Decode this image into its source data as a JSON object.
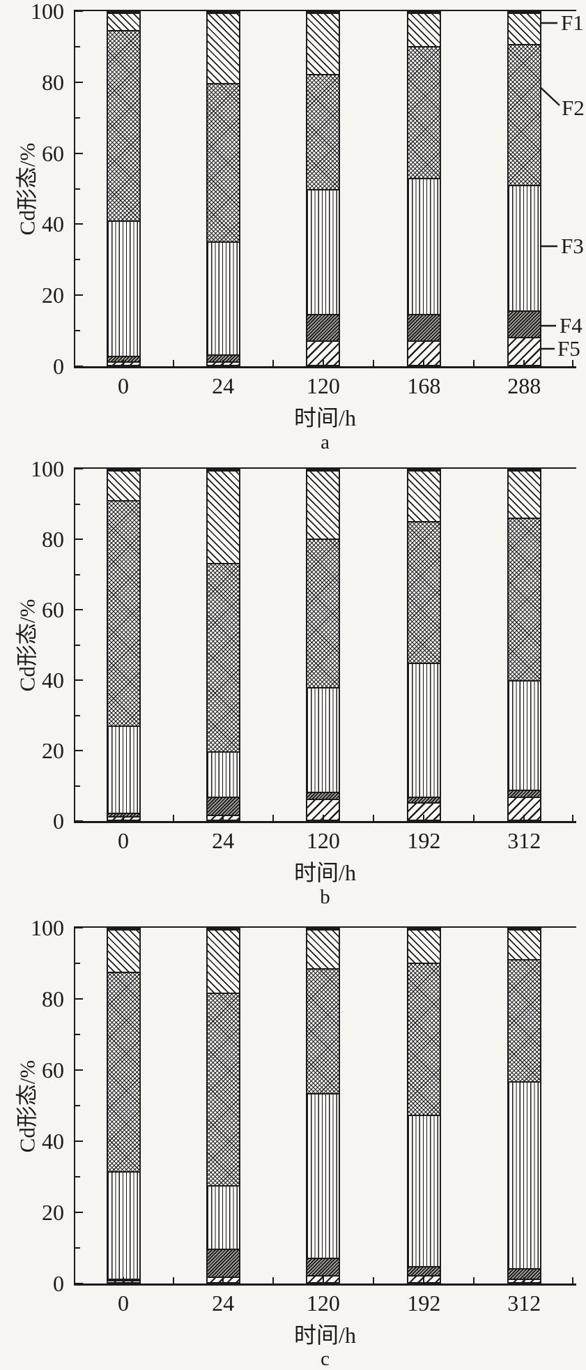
{
  "figure": {
    "kind": "scanned scientific figure, three vertically stacked 100% stacked bar charts",
    "background": "#f7f5f1",
    "ink_color": "#1b1b1b"
  },
  "legend": {
    "position": "right of panel a, labels with leader lines",
    "labels": [
      "F1",
      "F2",
      "F3",
      "F4",
      "F5"
    ],
    "patterns": {
      "F1": "sparse diagonal lines (top-left to bottom-right)",
      "F2": "diamond cross-hatch mesh",
      "F3": "vertical lines",
      "F4": "dense dark diagonal lines",
      "F5": "sparse diagonal lines (bottom-left to top-right)"
    }
  },
  "chart_data": [
    {
      "type": "bar",
      "stacked": true,
      "panel_label": "a",
      "xlabel": "时间/h",
      "ylabel": "Cd形态/%",
      "ylim": [
        0,
        100
      ],
      "y_ticks": [
        0,
        20,
        40,
        60,
        80,
        100
      ],
      "grid": false,
      "categories": [
        "0",
        "24",
        "120",
        "168",
        "288"
      ],
      "stack_order": [
        "F5",
        "F4",
        "F3",
        "F2",
        "F1"
      ],
      "series": [
        {
          "name": "F1",
          "values": [
            5,
            20,
            17.5,
            9.5,
            9
          ]
        },
        {
          "name": "F2",
          "values": [
            54,
            45,
            32.5,
            37.5,
            40
          ]
        },
        {
          "name": "F3",
          "values": [
            38.5,
            32,
            35.5,
            38.5,
            35.5
          ]
        },
        {
          "name": "F4",
          "values": [
            1.5,
            2,
            7.5,
            7.5,
            7.5
          ]
        },
        {
          "name": "F5",
          "values": [
            1,
            1,
            7,
            7,
            8
          ]
        }
      ]
    },
    {
      "type": "bar",
      "stacked": true,
      "panel_label": "b",
      "xlabel": "时间/h",
      "ylabel": "Cd形态/%",
      "ylim": [
        0,
        100
      ],
      "y_ticks": [
        0,
        20,
        40,
        60,
        80,
        100
      ],
      "grid": false,
      "categories": [
        "0",
        "24",
        "120",
        "192",
        "312"
      ],
      "stack_order": [
        "F5",
        "F4",
        "F3",
        "F2",
        "F1"
      ],
      "series": [
        {
          "name": "F1",
          "values": [
            8.5,
            26.5,
            19.5,
            14.5,
            13.5
          ]
        },
        {
          "name": "F2",
          "values": [
            64.5,
            54,
            42.5,
            40.5,
            46.5
          ]
        },
        {
          "name": "F3",
          "values": [
            25,
            13,
            30,
            38.5,
            31.5
          ]
        },
        {
          "name": "F4",
          "values": [
            1,
            5,
            2,
            1.5,
            2
          ]
        },
        {
          "name": "F5",
          "values": [
            1,
            1.5,
            6,
            5,
            6.5
          ]
        }
      ]
    },
    {
      "type": "bar",
      "stacked": true,
      "panel_label": "c",
      "xlabel": "时间/h",
      "ylabel": "Cd形态/%",
      "ylim": [
        0,
        100
      ],
      "y_ticks": [
        0,
        20,
        40,
        60,
        80,
        100
      ],
      "grid": false,
      "categories": [
        "0",
        "24",
        "120",
        "192",
        "312"
      ],
      "stack_order": [
        "F5",
        "F4",
        "F3",
        "F2",
        "F1"
      ],
      "series": [
        {
          "name": "F1",
          "values": [
            12,
            18,
            11,
            9.5,
            8.5
          ]
        },
        {
          "name": "F2",
          "values": [
            56.5,
            54.5,
            35.5,
            43,
            34.5
          ]
        },
        {
          "name": "F3",
          "values": [
            30.5,
            18,
            46.5,
            43,
            53
          ]
        },
        {
          "name": "F4",
          "values": [
            0.5,
            8,
            5,
            2.5,
            3
          ]
        },
        {
          "name": "F5",
          "values": [
            0.5,
            1.5,
            2,
            2,
            1
          ]
        }
      ]
    }
  ]
}
